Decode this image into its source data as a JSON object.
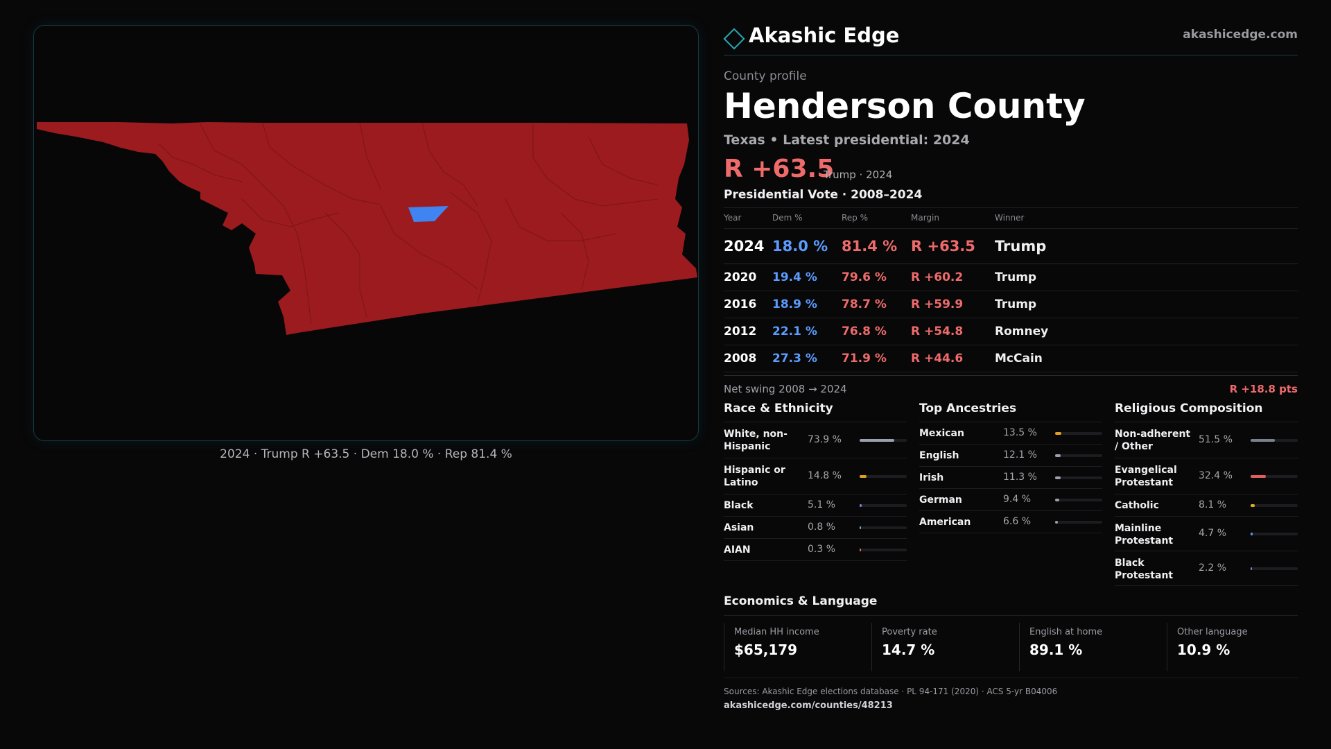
{
  "brand": {
    "name": "Akashic Edge",
    "url": "akashicedge.com",
    "icon": "diamond-icon"
  },
  "profile": {
    "eyebrow": "County profile",
    "county": "Henderson County",
    "subline": "Texas • Latest presidential: 2024",
    "headline_margin": "R +63.5",
    "headline_note": "Trump · 2024"
  },
  "map": {
    "caption": "2024 · Trump R +63.5 · Dem 18.0 % · Rep 81.4 %",
    "colors": {
      "republican": "#9b1b1e",
      "democrat": "#3f84f0"
    }
  },
  "presidential": {
    "title": "Presidential Vote · 2008–2024",
    "headers": {
      "year": "Year",
      "dem": "Dem %",
      "rep": "Rep %",
      "margin": "Margin",
      "winner": "Winner"
    },
    "rows": [
      {
        "year": "2024",
        "dem": "18.0 %",
        "rep": "81.4 %",
        "margin": "R +63.5",
        "winner": "Trump"
      },
      {
        "year": "2020",
        "dem": "19.4 %",
        "rep": "79.6 %",
        "margin": "R +60.2",
        "winner": "Trump"
      },
      {
        "year": "2016",
        "dem": "18.9 %",
        "rep": "78.7 %",
        "margin": "R +59.9",
        "winner": "Trump"
      },
      {
        "year": "2012",
        "dem": "22.1 %",
        "rep": "76.8 %",
        "margin": "R +54.8",
        "winner": "Romney"
      },
      {
        "year": "2008",
        "dem": "27.3 %",
        "rep": "71.9 %",
        "margin": "R +44.6",
        "winner": "McCain"
      }
    ],
    "swing_label": "Net swing 2008 → 2024",
    "swing_value": "R +18.8 pts"
  },
  "race": {
    "title": "Race & Ethnicity",
    "items": [
      {
        "label": "White, non-Hispanic",
        "pct": "73.9 %",
        "value": 73.9,
        "color": "#9aa0ac"
      },
      {
        "label": "Hispanic or Latino",
        "pct": "14.8 %",
        "value": 14.8,
        "color": "#e0a020"
      },
      {
        "label": "Black",
        "pct": "5.1 %",
        "value": 5.1,
        "color": "#8a7be0"
      },
      {
        "label": "Asian",
        "pct": "0.8 %",
        "value": 0.8,
        "color": "#6ab0c8"
      },
      {
        "label": "AIAN",
        "pct": "0.3 %",
        "value": 0.3,
        "color": "#d08040"
      }
    ]
  },
  "ancestry": {
    "title": "Top Ancestries",
    "items": [
      {
        "label": "Mexican",
        "pct": "13.5 %",
        "value": 13.5,
        "color": "#e0a020"
      },
      {
        "label": "English",
        "pct": "12.1 %",
        "value": 12.1,
        "color": "#9aa0ac"
      },
      {
        "label": "Irish",
        "pct": "11.3 %",
        "value": 11.3,
        "color": "#9aa0ac"
      },
      {
        "label": "German",
        "pct": "9.4 %",
        "value": 9.4,
        "color": "#9aa0ac"
      },
      {
        "label": "American",
        "pct": "6.6 %",
        "value": 6.6,
        "color": "#9aa0ac"
      }
    ]
  },
  "religion": {
    "title": "Religious Composition",
    "items": [
      {
        "label": "Non-adherent / Other",
        "pct": "51.5 %",
        "value": 51.5,
        "color": "#7a808c"
      },
      {
        "label": "Evangelical Protestant",
        "pct": "32.4 %",
        "value": 32.4,
        "color": "#e06060"
      },
      {
        "label": "Catholic",
        "pct": "8.1 %",
        "value": 8.1,
        "color": "#e0b020"
      },
      {
        "label": "Mainline Protestant",
        "pct": "4.7 %",
        "value": 4.7,
        "color": "#5c9cff"
      },
      {
        "label": "Black Protestant",
        "pct": "2.2 %",
        "value": 2.2,
        "color": "#8a7be0"
      }
    ]
  },
  "economics": {
    "title": "Economics & Language",
    "cells": [
      {
        "label": "Median HH income",
        "value": "$65,179"
      },
      {
        "label": "Poverty rate",
        "value": "14.7 %"
      },
      {
        "label": "English at home",
        "value": "89.1 %"
      },
      {
        "label": "Other language",
        "value": "10.9 %"
      }
    ]
  },
  "sources": {
    "text": "Sources: Akashic Edge elections database · PL 94-171 (2020) · ACS 5-yr B04006",
    "url": "akashicedge.com/counties/48213"
  }
}
